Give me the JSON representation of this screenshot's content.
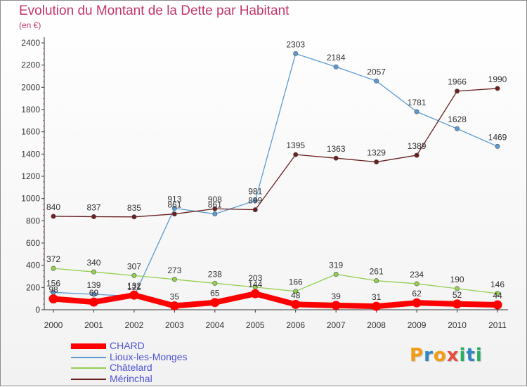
{
  "chart_data": {
    "type": "line",
    "title": "Evolution du Montant de la Dette par Habitant",
    "subtitle": "(en €)",
    "x": [
      "2000",
      "2001",
      "2002",
      "2003",
      "2004",
      "2005",
      "2006",
      "2007",
      "2008",
      "2009",
      "2010",
      "2011"
    ],
    "ylim": [
      0,
      2400
    ],
    "yticks": [
      0,
      200,
      400,
      600,
      800,
      1000,
      1200,
      1400,
      1600,
      1800,
      2000,
      2200,
      2400
    ],
    "grid": false,
    "legend_position": "bottom-left",
    "series": [
      {
        "name": "CHARD",
        "color": "#ff0000",
        "values": [
          98,
          69,
          132,
          35,
          65,
          144,
          48,
          39,
          31,
          62,
          52,
          44
        ]
      },
      {
        "name": "Lioux-les-Monges",
        "color": "#5b9bd5",
        "values": [
          156,
          139,
          121,
          913,
          861,
          981,
          2303,
          2184,
          2057,
          1781,
          1628,
          1469
        ]
      },
      {
        "name": "Châtelard",
        "color": "#92d050",
        "values": [
          372,
          340,
          307,
          273,
          238,
          203,
          166,
          319,
          261,
          234,
          190,
          146
        ]
      },
      {
        "name": "Mérinchal",
        "color": "#6b1f1f",
        "values": [
          840,
          837,
          835,
          861,
          908,
          899,
          1395,
          1363,
          1329,
          1389,
          1966,
          1990
        ]
      }
    ]
  },
  "logo": {
    "letters": [
      "P",
      "r",
      "o",
      "x",
      "i",
      "t",
      "i"
    ],
    "colors": [
      "#f39c12",
      "#2e86c1",
      "#f39c12",
      "#e74c3c",
      "#27ae60",
      "#2e86c1",
      "#27ae60"
    ]
  }
}
